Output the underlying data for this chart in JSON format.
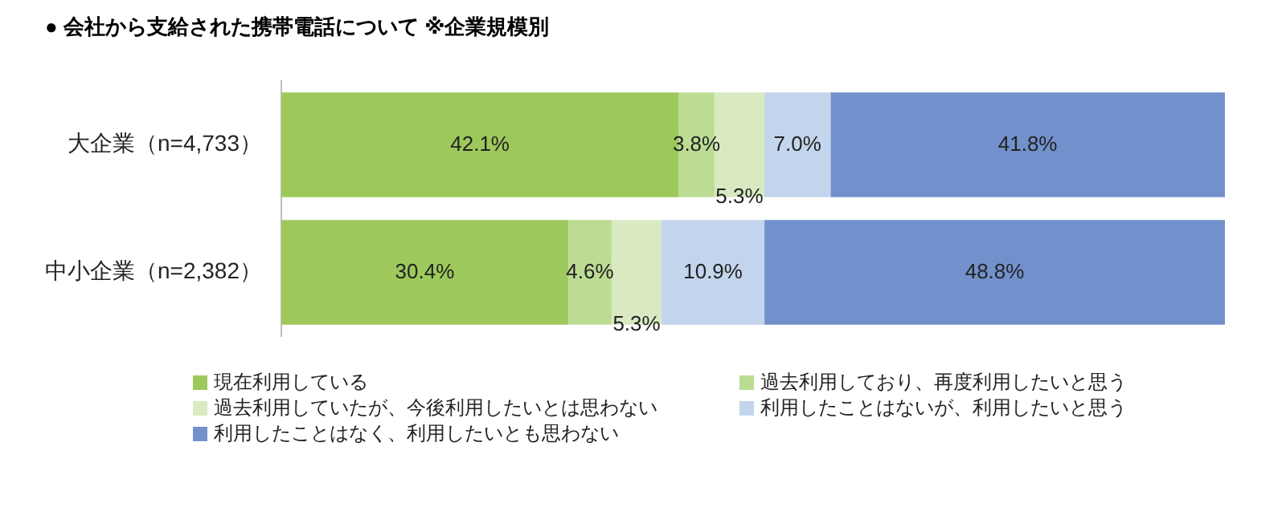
{
  "chart_data": {
    "type": "bar",
    "orientation": "horizontal",
    "stacked": true,
    "title": "● 会社から支給された携帯電話について ※企業規模別",
    "categories": [
      "大企業（n=4,733）",
      "中小企業（n=2,382）"
    ],
    "series": [
      {
        "name": "現在利用している",
        "color": "#9dc95c",
        "values": [
          42.1,
          30.4
        ],
        "value_labels": [
          "42.1%",
          "30.4%"
        ]
      },
      {
        "name": "過去利用しており、再度利用したいと思う",
        "color": "#bcdc93",
        "values": [
          3.8,
          4.6
        ],
        "value_labels": [
          "3.8%",
          "4.6%"
        ]
      },
      {
        "name": "過去利用していたが、今後利用したいとは思わない",
        "color": "#d9eac2",
        "values": [
          5.3,
          5.3
        ],
        "value_labels": [
          "5.3%",
          "5.3%"
        ]
      },
      {
        "name": "利用したことはないが、利用したいと思う",
        "color": "#c3d5ec",
        "values": [
          7.0,
          10.9
        ],
        "value_labels": [
          "7.0%",
          "10.9%"
        ]
      },
      {
        "name": "利用したことはなく、利用したいとも思わない",
        "color": "#7291cc",
        "values": [
          41.8,
          48.8
        ],
        "value_labels": [
          "41.8%",
          "48.8%"
        ]
      }
    ],
    "xlim": [
      0,
      100
    ],
    "legend": "bottom"
  }
}
